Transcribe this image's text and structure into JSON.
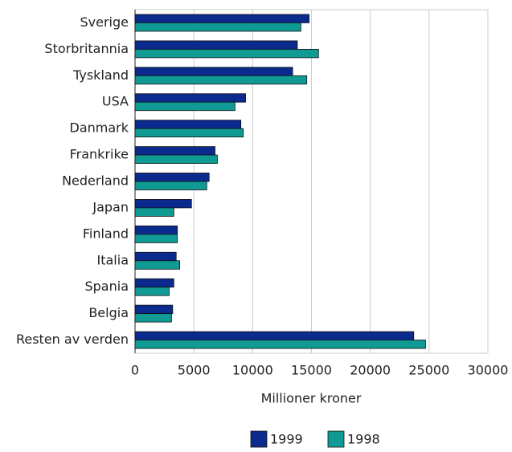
{
  "chart_data": {
    "type": "bar",
    "orientation": "horizontal",
    "categories": [
      "Sverige",
      "Storbritannia",
      "Tyskland",
      "USA",
      "Danmark",
      "Frankrike",
      "Nederland",
      "Japan",
      "Finland",
      "Italia",
      "Spania",
      "Belgia",
      "Resten av verden"
    ],
    "series": [
      {
        "name": "1999",
        "color": "#0b2a8e",
        "values": [
          14800,
          13800,
          13400,
          9400,
          9000,
          6800,
          6300,
          4800,
          3600,
          3500,
          3300,
          3200,
          23700
        ]
      },
      {
        "name": "1998",
        "color": "#109a94",
        "values": [
          14100,
          15600,
          14600,
          8500,
          9200,
          7000,
          6100,
          3300,
          3600,
          3800,
          2900,
          3100,
          24700
        ]
      }
    ],
    "xlabel": "Millioner kroner",
    "xlim": [
      0,
      30000
    ],
    "xticks": [
      0,
      5000,
      10000,
      15000,
      20000,
      25000,
      30000
    ],
    "grid": true,
    "legend": "bottom"
  }
}
